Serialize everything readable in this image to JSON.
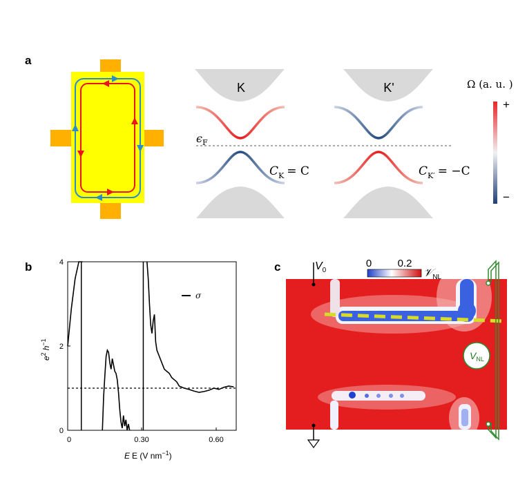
{
  "panel_a": {
    "letter": "a",
    "valley_k_label": "K",
    "valley_kp_label": "K'",
    "fermi_label": "ϵ",
    "fermi_sub": "F",
    "chern_k_label": "C",
    "chern_k_sub": "K",
    "chern_k_rhs": "= C",
    "chern_kp_label": "C",
    "chern_kp_sub": "K′",
    "chern_kp_rhs": "= −C",
    "colorbar_title": "Ω (a. u. )",
    "colorbar_plus": "+",
    "colorbar_minus": "−",
    "colors": {
      "device": "#ffff00",
      "contacts": "#ffb000",
      "inner_loop": "#e8141e",
      "outer_loop": "#2a8cc8",
      "band_gray": "#d9d9d9",
      "positive": "#e8262a",
      "negative": "#23497e"
    }
  },
  "panel_b": {
    "letter": "b",
    "ylabel_base": "e",
    "ylabel_sup1": "2",
    "ylabel_mid": "h",
    "ylabel_sup2": "−1",
    "xlabel": "E (V nm",
    "xlabel_sup": "−1",
    "xlabel_close": ")",
    "legend_label": "σ",
    "yticks": [
      "0",
      "2",
      "4"
    ],
    "xticks": [
      "0",
      "0.30",
      "0.60"
    ]
  },
  "panel_c": {
    "letter": "c",
    "v0_label": "V",
    "v0_sub": "0",
    "cbar_ticks": [
      "0",
      "0.2"
    ],
    "cbar_label": "𝒱",
    "cbar_sub": "NL",
    "probe_label": "V",
    "probe_sub": "NL",
    "colors": {
      "map_red": "#e41e1e",
      "cut_line": "#d8dc28",
      "probe": "#2e8b2e"
    }
  },
  "chart_data": {
    "type": "line",
    "xlabel": "E (V nm−1)",
    "ylabel": "e2 h−1",
    "xlim": [
      0,
      0.68
    ],
    "ylim": [
      0,
      4
    ],
    "series": [
      {
        "name": "σ",
        "x": [
          0.0,
          0.005,
          0.015,
          0.03,
          0.045,
          0.05,
          0.055,
          0.06
        ],
        "y": [
          2.0,
          2.3,
          2.9,
          3.6,
          4.0,
          4.0,
          4.0,
          4.0
        ]
      },
      {
        "x": [
          0.14,
          0.145,
          0.15,
          0.155,
          0.16,
          0.165,
          0.17,
          0.175,
          0.18,
          0.185,
          0.19,
          0.195,
          0.2,
          0.205,
          0.21,
          0.215,
          0.22,
          0.225,
          0.23,
          0.235,
          0.24,
          0.245,
          0.25
        ],
        "y": [
          0.0,
          0.8,
          1.3,
          1.75,
          1.9,
          1.85,
          1.6,
          1.45,
          1.7,
          1.55,
          1.4,
          1.35,
          1.2,
          0.9,
          0.5,
          0.2,
          0.05,
          0.35,
          0.1,
          0.25,
          0.0,
          0.15,
          0.0
        ]
      },
      {
        "x": [
          0.32,
          0.325,
          0.33,
          0.335,
          0.34,
          0.345,
          0.35,
          0.355,
          0.36,
          0.37,
          0.38,
          0.39,
          0.4,
          0.41,
          0.42,
          0.43,
          0.44,
          0.45,
          0.47,
          0.49,
          0.51,
          0.53,
          0.55,
          0.57,
          0.59,
          0.61,
          0.63,
          0.65,
          0.67
        ],
        "y": [
          4.0,
          3.6,
          3.0,
          2.5,
          2.3,
          2.6,
          2.75,
          2.1,
          1.9,
          1.75,
          1.6,
          1.45,
          1.4,
          1.35,
          1.25,
          1.2,
          1.15,
          1.05,
          1.0,
          0.97,
          0.93,
          0.9,
          0.92,
          0.95,
          1.0,
          0.97,
          1.02,
          1.05,
          1.03
        ]
      }
    ],
    "hlines": [
      1.0
    ],
    "vlines": [
      0.055,
      0.305
    ]
  }
}
